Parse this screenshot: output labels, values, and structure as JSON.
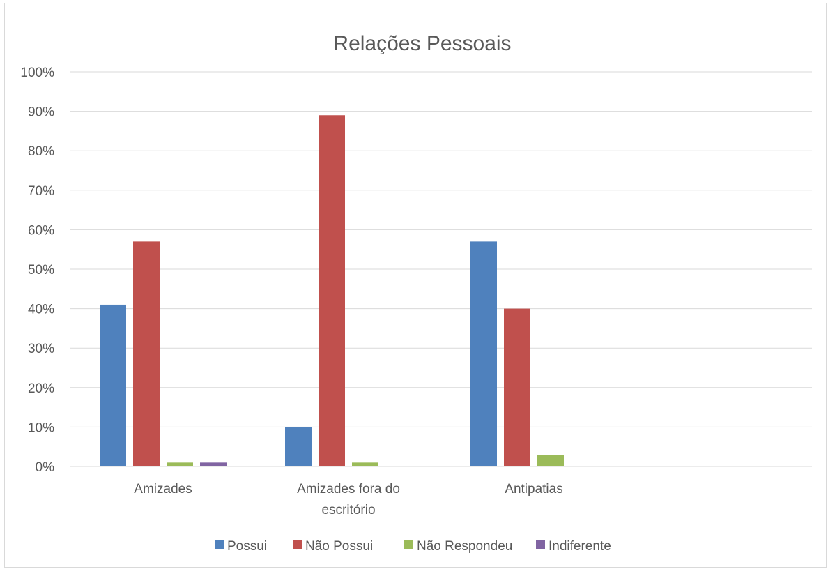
{
  "chart_data": {
    "type": "bar",
    "title": "Relações Pessoais",
    "categories": [
      "Amizades",
      "Amizades fora do escritório",
      "Antipatias"
    ],
    "category_lines": [
      [
        "Amizades"
      ],
      [
        "Amizades fora do",
        "escritório"
      ],
      [
        "Antipatias"
      ]
    ],
    "series": [
      {
        "name": "Possui",
        "color": "#4f81bd",
        "values": [
          41,
          10,
          57
        ]
      },
      {
        "name": "Não Possui",
        "color": "#c0504d",
        "values": [
          57,
          89,
          40
        ]
      },
      {
        "name": "Não Respondeu",
        "color": "#9bbb59",
        "values": [
          1,
          1,
          3
        ]
      },
      {
        "name": "Indiferente",
        "color": "#8064a2",
        "values": [
          1,
          0,
          0
        ]
      }
    ],
    "ylim": [
      0,
      100
    ],
    "yticks": [
      "0%",
      "10%",
      "20%",
      "30%",
      "40%",
      "50%",
      "60%",
      "70%",
      "80%",
      "90%",
      "100%"
    ],
    "grid": true,
    "legend_position": "bottom"
  }
}
